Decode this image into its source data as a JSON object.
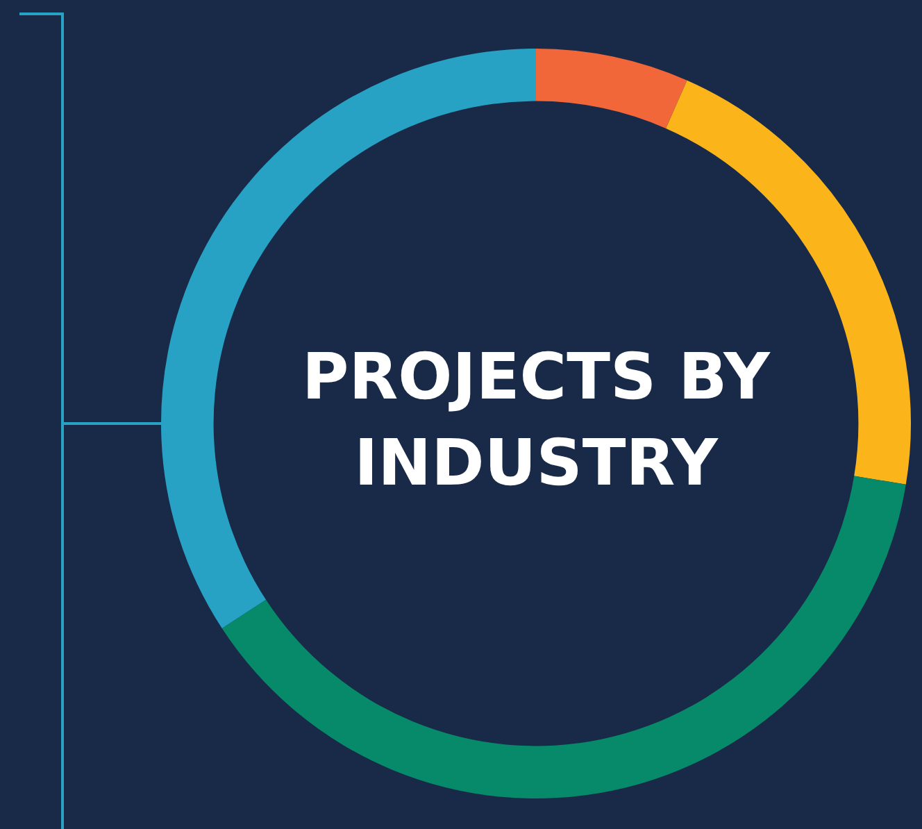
{
  "chart_data": {
    "type": "donut",
    "title": "PROJECTS BY INDUSTRY",
    "categories": [
      null,
      null,
      null,
      null
    ],
    "values": [
      6.6,
      21,
      38.2,
      34.2
    ],
    "colors": [
      "#f26739",
      "#fbb41a",
      "#068a6a",
      "#27a1c4"
    ],
    "legend": false
  }
}
